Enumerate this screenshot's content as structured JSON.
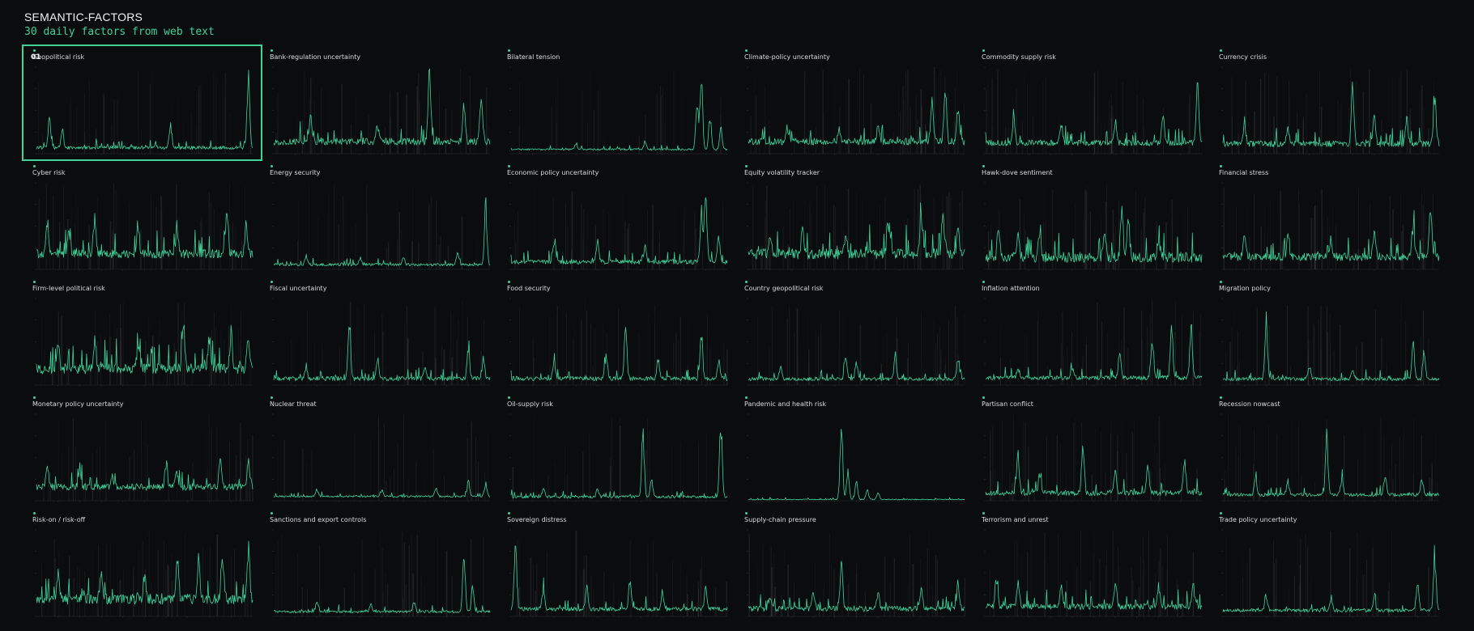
{
  "header": {
    "brand": "SEMANTIC-FACTORS",
    "subtitle": "30 daily factors from web text"
  },
  "selected_panel": 0,
  "selected_badge": "01",
  "colors": {
    "accent": "#3fd39a",
    "background": "#0b0c0e",
    "band": "#8a8a8a"
  },
  "chart_data": [
    {
      "type": "line",
      "title": "Geopolitical risk",
      "peaks": [
        [
          0.06,
          0.35
        ],
        [
          0.12,
          0.2
        ],
        [
          0.62,
          0.28
        ],
        [
          0.98,
          0.95
        ]
      ],
      "noise": 0.04,
      "base": 0.05,
      "bands": 0.45
    },
    {
      "type": "line",
      "title": "Bank-regulation uncertainty",
      "peaks": [
        [
          0.17,
          0.3
        ],
        [
          0.48,
          0.22
        ],
        [
          0.72,
          0.25
        ],
        [
          0.72,
          0.7
        ],
        [
          0.88,
          0.45
        ],
        [
          0.96,
          0.6
        ]
      ],
      "noise": 0.08,
      "base": 0.1,
      "bands": 0.55
    },
    {
      "type": "line",
      "title": "Bilateral tension",
      "peaks": [
        [
          0.3,
          0.08
        ],
        [
          0.62,
          0.1
        ],
        [
          0.86,
          0.55
        ],
        [
          0.88,
          0.95
        ],
        [
          0.92,
          0.4
        ],
        [
          0.97,
          0.25
        ]
      ],
      "noise": 0.02,
      "base": 0.04,
      "bands": 0.3
    },
    {
      "type": "line",
      "title": "Climate-policy uncertainty",
      "peaks": [
        [
          0.18,
          0.2
        ],
        [
          0.42,
          0.15
        ],
        [
          0.6,
          0.18
        ],
        [
          0.85,
          0.5
        ],
        [
          0.91,
          0.7
        ],
        [
          0.97,
          0.45
        ]
      ],
      "noise": 0.08,
      "base": 0.1,
      "bands": 0.6
    },
    {
      "type": "line",
      "title": "Commodity supply risk",
      "peaks": [
        [
          0.13,
          0.3
        ],
        [
          0.35,
          0.22
        ],
        [
          0.6,
          0.25
        ],
        [
          0.82,
          0.35
        ],
        [
          0.98,
          0.65
        ]
      ],
      "noise": 0.07,
      "base": 0.09,
      "bands": 0.55
    },
    {
      "type": "line",
      "title": "Currency crisis",
      "peaks": [
        [
          0.1,
          0.25
        ],
        [
          0.3,
          0.2
        ],
        [
          0.6,
          0.7
        ],
        [
          0.7,
          0.35
        ],
        [
          0.85,
          0.3
        ],
        [
          0.98,
          0.55
        ]
      ],
      "noise": 0.07,
      "base": 0.08,
      "bands": 0.55
    },
    {
      "type": "line",
      "title": "Cyber risk",
      "peaks": [
        [
          0.05,
          0.4
        ],
        [
          0.15,
          0.25
        ],
        [
          0.27,
          0.45
        ],
        [
          0.47,
          0.35
        ],
        [
          0.65,
          0.3
        ],
        [
          0.88,
          0.5
        ],
        [
          0.97,
          0.35
        ]
      ],
      "noise": 0.1,
      "base": 0.13,
      "bands": 0.6
    },
    {
      "type": "line",
      "title": "Energy security",
      "peaks": [
        [
          0.15,
          0.1
        ],
        [
          0.4,
          0.08
        ],
        [
          0.6,
          0.1
        ],
        [
          0.85,
          0.15
        ],
        [
          0.98,
          0.7
        ]
      ],
      "noise": 0.03,
      "base": 0.04,
      "bands": 0.35
    },
    {
      "type": "line",
      "title": "Economic policy uncertainty",
      "peaks": [
        [
          0.2,
          0.3
        ],
        [
          0.4,
          0.25
        ],
        [
          0.62,
          0.2
        ],
        [
          0.88,
          0.55
        ],
        [
          0.9,
          0.9
        ],
        [
          0.96,
          0.3
        ]
      ],
      "noise": 0.05,
      "base": 0.06,
      "bands": 0.45
    },
    {
      "type": "line",
      "title": "Equity volatility tracker",
      "peaks": [
        [
          0.1,
          0.25
        ],
        [
          0.25,
          0.3
        ],
        [
          0.45,
          0.25
        ],
        [
          0.65,
          0.35
        ],
        [
          0.8,
          0.45
        ],
        [
          0.9,
          0.5
        ],
        [
          0.97,
          0.3
        ]
      ],
      "noise": 0.12,
      "base": 0.12,
      "bands": 0.65
    },
    {
      "type": "line",
      "title": "Hawk-dove sentiment",
      "peaks": [
        [
          0.06,
          0.35
        ],
        [
          0.15,
          0.3
        ],
        [
          0.25,
          0.35
        ],
        [
          0.55,
          0.3
        ],
        [
          0.63,
          0.6
        ],
        [
          0.66,
          0.45
        ],
        [
          0.8,
          0.25
        ]
      ],
      "noise": 0.12,
      "base": 0.08,
      "bands": 0.55
    },
    {
      "type": "line",
      "title": "Financial stress",
      "peaks": [
        [
          0.1,
          0.3
        ],
        [
          0.3,
          0.25
        ],
        [
          0.5,
          0.2
        ],
        [
          0.7,
          0.3
        ],
        [
          0.88,
          0.4
        ],
        [
          0.96,
          0.7
        ]
      ],
      "noise": 0.09,
      "base": 0.1,
      "bands": 0.6
    },
    {
      "type": "line",
      "title": "Firm-level political risk",
      "peaks": [
        [
          0.1,
          0.3
        ],
        [
          0.27,
          0.35
        ],
        [
          0.47,
          0.3
        ],
        [
          0.68,
          0.55
        ],
        [
          0.8,
          0.4
        ],
        [
          0.9,
          0.45
        ],
        [
          0.98,
          0.35
        ]
      ],
      "noise": 0.12,
      "base": 0.13,
      "bands": 0.65
    },
    {
      "type": "line",
      "title": "Fiscal uncertainty",
      "peaks": [
        [
          0.15,
          0.12
        ],
        [
          0.35,
          0.7
        ],
        [
          0.48,
          0.2
        ],
        [
          0.7,
          0.15
        ],
        [
          0.9,
          0.35
        ],
        [
          0.97,
          0.25
        ]
      ],
      "noise": 0.05,
      "base": 0.05,
      "bands": 0.5
    },
    {
      "type": "line",
      "title": "Food security",
      "peaks": [
        [
          0.2,
          0.2
        ],
        [
          0.44,
          0.3
        ],
        [
          0.53,
          0.6
        ],
        [
          0.68,
          0.25
        ],
        [
          0.88,
          0.55
        ],
        [
          0.96,
          0.2
        ]
      ],
      "noise": 0.05,
      "base": 0.05,
      "bands": 0.5
    },
    {
      "type": "line",
      "title": "Country geopolitical risk",
      "peaks": [
        [
          0.15,
          0.15
        ],
        [
          0.45,
          0.3
        ],
        [
          0.5,
          0.2
        ],
        [
          0.68,
          0.28
        ],
        [
          0.97,
          0.25
        ]
      ],
      "noise": 0.04,
      "base": 0.05,
      "bands": 0.5
    },
    {
      "type": "line",
      "title": "Inflation attention",
      "peaks": [
        [
          0.15,
          0.12
        ],
        [
          0.4,
          0.1
        ],
        [
          0.62,
          0.3
        ],
        [
          0.77,
          0.45
        ],
        [
          0.86,
          0.6
        ],
        [
          0.95,
          0.55
        ]
      ],
      "noise": 0.05,
      "base": 0.06,
      "bands": 0.55
    },
    {
      "type": "line",
      "title": "Migration policy",
      "peaks": [
        [
          0.2,
          0.75
        ],
        [
          0.4,
          0.15
        ],
        [
          0.6,
          0.12
        ],
        [
          0.88,
          0.45
        ],
        [
          0.93,
          0.35
        ]
      ],
      "noise": 0.04,
      "base": 0.05,
      "bands": 0.5
    },
    {
      "type": "line",
      "title": "Monetary policy uncertainty",
      "peaks": [
        [
          0.05,
          0.25
        ],
        [
          0.2,
          0.2
        ],
        [
          0.35,
          0.15
        ],
        [
          0.6,
          0.3
        ],
        [
          0.65,
          0.2
        ],
        [
          0.85,
          0.35
        ],
        [
          0.98,
          0.3
        ]
      ],
      "noise": 0.08,
      "base": 0.12,
      "bands": 0.5
    },
    {
      "type": "line",
      "title": "Nuclear threat",
      "peaks": [
        [
          0.2,
          0.08
        ],
        [
          0.5,
          0.07
        ],
        [
          0.75,
          0.1
        ],
        [
          0.9,
          0.2
        ],
        [
          0.98,
          0.15
        ]
      ],
      "noise": 0.02,
      "base": 0.04,
      "bands": 0.35
    },
    {
      "type": "line",
      "title": "Oil-supply risk",
      "peaks": [
        [
          0.15,
          0.1
        ],
        [
          0.4,
          0.08
        ],
        [
          0.61,
          0.8
        ],
        [
          0.65,
          0.2
        ],
        [
          0.97,
          0.9
        ]
      ],
      "noise": 0.03,
      "base": 0.03,
      "bands": 0.3
    },
    {
      "type": "line",
      "title": "Pandemic and health risk",
      "peaks": [
        [
          0.43,
          0.95
        ],
        [
          0.46,
          0.35
        ],
        [
          0.5,
          0.2
        ],
        [
          0.55,
          0.12
        ],
        [
          0.6,
          0.08
        ]
      ],
      "noise": 0.01,
      "base": 0.01,
      "bands": 0.0
    },
    {
      "type": "line",
      "title": "Partisan conflict",
      "peaks": [
        [
          0.15,
          0.45
        ],
        [
          0.25,
          0.25
        ],
        [
          0.45,
          0.6
        ],
        [
          0.6,
          0.3
        ],
        [
          0.75,
          0.35
        ],
        [
          0.92,
          0.4
        ]
      ],
      "noise": 0.06,
      "base": 0.06,
      "bands": 0.55
    },
    {
      "type": "line",
      "title": "Recession nowcast",
      "peaks": [
        [
          0.15,
          0.2
        ],
        [
          0.3,
          0.15
        ],
        [
          0.48,
          0.75
        ],
        [
          0.55,
          0.2
        ],
        [
          0.75,
          0.25
        ],
        [
          0.92,
          0.2
        ]
      ],
      "noise": 0.04,
      "base": 0.05,
      "bands": 0.5
    },
    {
      "type": "line",
      "title": "Risk-on / risk-off",
      "peaks": [
        [
          0.1,
          0.3
        ],
        [
          0.3,
          0.35
        ],
        [
          0.5,
          0.3
        ],
        [
          0.65,
          0.45
        ],
        [
          0.75,
          0.5
        ],
        [
          0.86,
          0.55
        ],
        [
          0.98,
          0.65
        ]
      ],
      "noise": 0.12,
      "base": 0.14,
      "bands": 0.6
    },
    {
      "type": "line",
      "title": "Sanctions and export controls",
      "peaks": [
        [
          0.2,
          0.12
        ],
        [
          0.45,
          0.08
        ],
        [
          0.65,
          0.1
        ],
        [
          0.88,
          0.7
        ],
        [
          0.92,
          0.3
        ]
      ],
      "noise": 0.03,
      "base": 0.04,
      "bands": 0.4
    },
    {
      "type": "line",
      "title": "Sovereign distress",
      "peaks": [
        [
          0.02,
          0.7
        ],
        [
          0.15,
          0.25
        ],
        [
          0.35,
          0.3
        ],
        [
          0.55,
          0.35
        ],
        [
          0.7,
          0.2
        ],
        [
          0.9,
          0.25
        ]
      ],
      "noise": 0.05,
      "base": 0.06,
      "bands": 0.5
    },
    {
      "type": "line",
      "title": "Supply-chain pressure",
      "peaks": [
        [
          0.1,
          0.15
        ],
        [
          0.3,
          0.2
        ],
        [
          0.43,
          0.55
        ],
        [
          0.6,
          0.2
        ],
        [
          0.8,
          0.25
        ],
        [
          0.97,
          0.3
        ]
      ],
      "noise": 0.06,
      "base": 0.06,
      "bands": 0.5
    },
    {
      "type": "line",
      "title": "Terrorism and unrest",
      "peaks": [
        [
          0.05,
          0.35
        ],
        [
          0.15,
          0.3
        ],
        [
          0.35,
          0.25
        ],
        [
          0.6,
          0.3
        ],
        [
          0.8,
          0.25
        ],
        [
          0.96,
          0.3
        ]
      ],
      "noise": 0.07,
      "base": 0.08,
      "bands": 0.55
    },
    {
      "type": "line",
      "title": "Trade policy uncertainty",
      "peaks": [
        [
          0.2,
          0.2
        ],
        [
          0.5,
          0.15
        ],
        [
          0.7,
          0.15
        ],
        [
          0.9,
          0.35
        ],
        [
          0.98,
          0.65
        ]
      ],
      "noise": 0.04,
      "base": 0.05,
      "bands": 0.45
    }
  ]
}
